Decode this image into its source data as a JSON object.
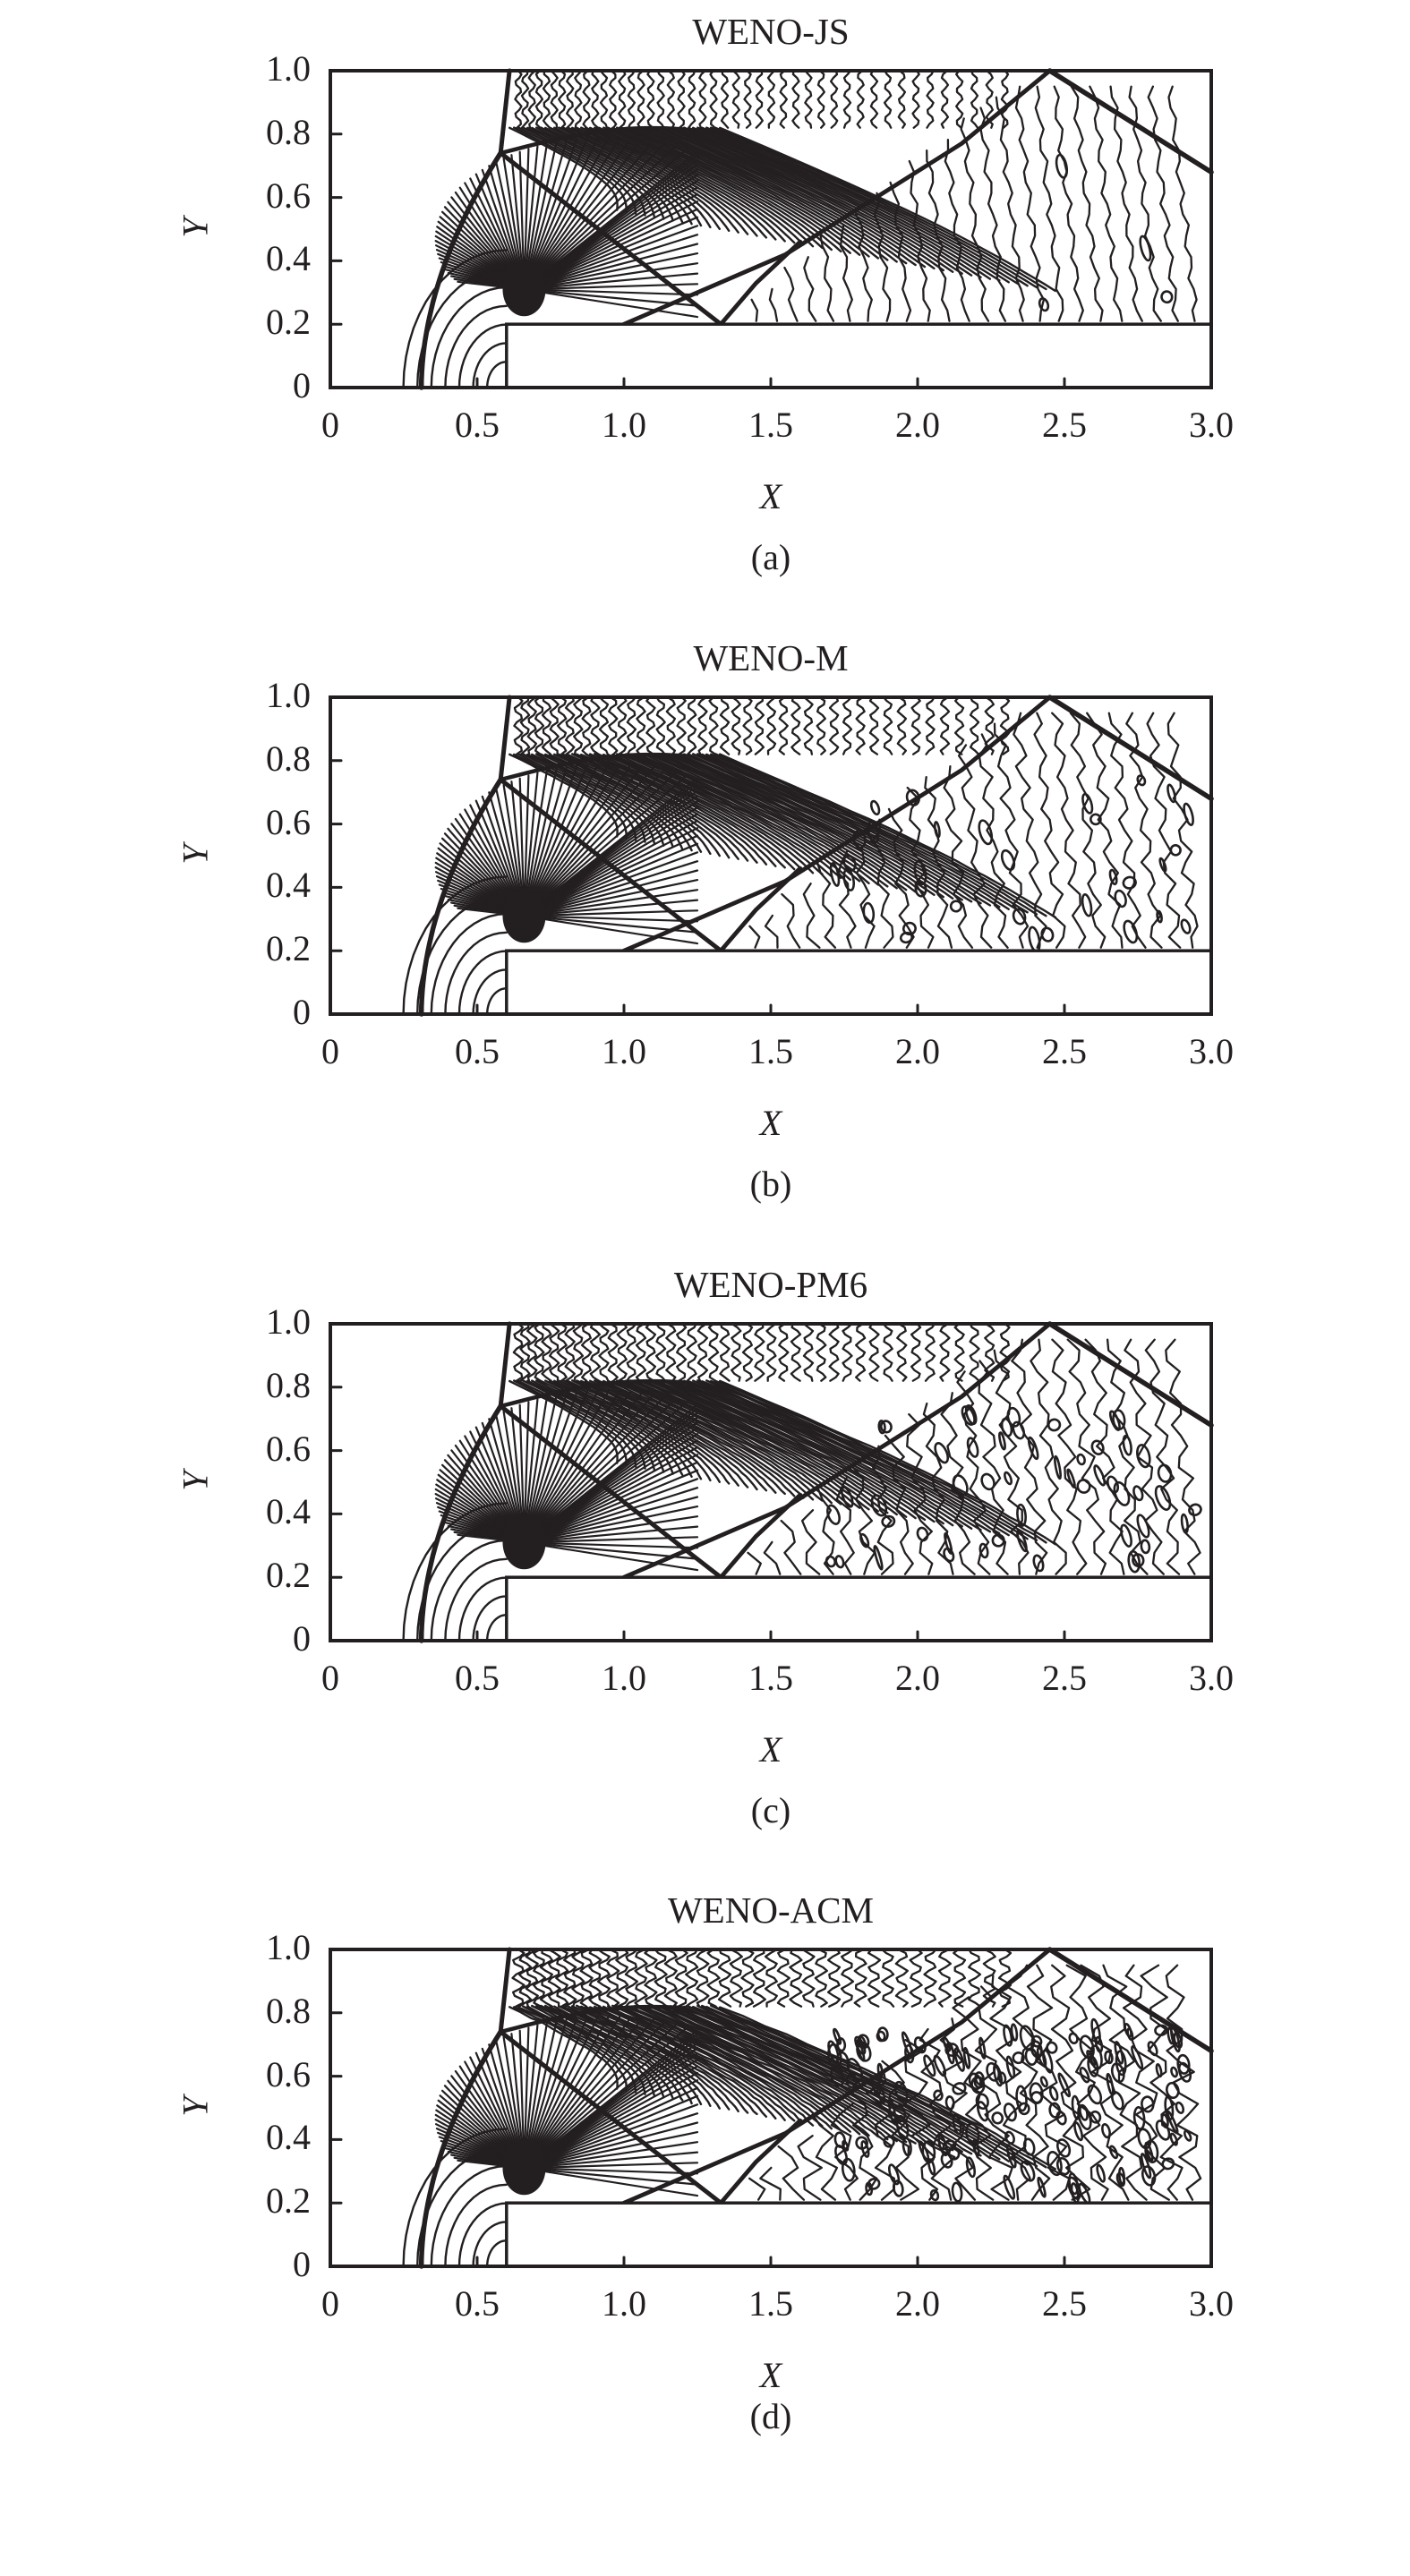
{
  "figure": {
    "description": "Density contours for Mach 3 forward-facing step problem computed with four WENO schemes",
    "panels": [
      {
        "id": "a",
        "title": "WENO-JS",
        "caption": "(a)",
        "noise": 0.2
      },
      {
        "id": "b",
        "title": "WENO-M",
        "caption": "(b)",
        "noise": 0.55
      },
      {
        "id": "c",
        "title": "WENO-PM6",
        "caption": "(c)",
        "noise": 0.7
      },
      {
        "id": "d",
        "title": "WENO-ACM",
        "caption": "(d)",
        "noise": 1.2
      }
    ]
  },
  "chart_data": [
    {
      "type": "contour",
      "title": "WENO-JS",
      "caption": "(a)",
      "xlabel": "X",
      "ylabel": "Y",
      "xlim": [
        0,
        3.0
      ],
      "ylim": [
        0,
        1.0
      ],
      "xticks": [
        "0",
        "0.5",
        "1.0",
        "1.5",
        "2.0",
        "2.5",
        "3.0"
      ],
      "yticks": [
        "0",
        "0.2",
        "0.4",
        "0.6",
        "0.8",
        "1.0"
      ],
      "grid": false,
      "step": {
        "x": 0.6,
        "height": 0.2
      },
      "features": {
        "bow_shock_foot_x": 0.31,
        "triple_point": [
          0.58,
          0.74
        ],
        "mach_stem_top_x": 0.61,
        "reflected_shock_wall_hit": [
          1.33,
          0.2
        ],
        "reflected_shock_top_hit": [
          2.45,
          1.0
        ],
        "exit_shock_right_y": 0.68,
        "contact_discontinuity": "smooth"
      }
    },
    {
      "type": "contour",
      "title": "WENO-M",
      "caption": "(b)",
      "xlabel": "X",
      "ylabel": "Y",
      "xlim": [
        0,
        3.0
      ],
      "ylim": [
        0,
        1.0
      ],
      "xticks": [
        "0",
        "0.5",
        "1.0",
        "1.5",
        "2.0",
        "2.5",
        "3.0"
      ],
      "yticks": [
        "0",
        "0.2",
        "0.4",
        "0.6",
        "0.8",
        "1.0"
      ],
      "grid": false,
      "step": {
        "x": 0.6,
        "height": 0.2
      },
      "features": {
        "bow_shock_foot_x": 0.31,
        "triple_point": [
          0.58,
          0.74
        ],
        "mach_stem_top_x": 0.61,
        "reflected_shock_wall_hit": [
          1.33,
          0.2
        ],
        "reflected_shock_top_hit": [
          2.45,
          1.0
        ],
        "exit_shock_right_y": 0.68,
        "contact_discontinuity": "mildly oscillatory"
      }
    },
    {
      "type": "contour",
      "title": "WENO-PM6",
      "caption": "(c)",
      "xlabel": "X",
      "ylabel": "Y",
      "xlim": [
        0,
        3.0
      ],
      "ylim": [
        0,
        1.0
      ],
      "xticks": [
        "0",
        "0.5",
        "1.0",
        "1.5",
        "2.0",
        "2.5",
        "3.0"
      ],
      "yticks": [
        "0",
        "0.2",
        "0.4",
        "0.6",
        "0.8",
        "1.0"
      ],
      "grid": false,
      "step": {
        "x": 0.6,
        "height": 0.2
      },
      "features": {
        "bow_shock_foot_x": 0.31,
        "triple_point": [
          0.58,
          0.74
        ],
        "mach_stem_top_x": 0.61,
        "reflected_shock_wall_hit": [
          1.33,
          0.2
        ],
        "reflected_shock_top_hit": [
          2.45,
          1.0
        ],
        "exit_shock_right_y": 0.68,
        "contact_discontinuity": "oscillatory"
      }
    },
    {
      "type": "contour",
      "title": "WENO-ACM",
      "caption": "(d)",
      "xlabel": "X",
      "ylabel": "Y",
      "xlim": [
        0,
        3.0
      ],
      "ylim": [
        0,
        1.0
      ],
      "xticks": [
        "0",
        "0.5",
        "1.0",
        "1.5",
        "2.0",
        "2.5",
        "3.0"
      ],
      "yticks": [
        "0",
        "0.2",
        "0.4",
        "0.6",
        "0.8",
        "1.0"
      ],
      "grid": false,
      "step": {
        "x": 0.6,
        "height": 0.2
      },
      "features": {
        "bow_shock_foot_x": 0.31,
        "triple_point": [
          0.58,
          0.74
        ],
        "mach_stem_top_x": 0.61,
        "reflected_shock_wall_hit": [
          1.33,
          0.2
        ],
        "reflected_shock_top_hit": [
          2.45,
          1.0
        ],
        "exit_shock_right_y": 0.68,
        "contact_discontinuity": "strongly oscillatory with small-scale vortical structures"
      }
    }
  ],
  "style": {
    "ink": "#231f20",
    "background": "#ffffff"
  }
}
